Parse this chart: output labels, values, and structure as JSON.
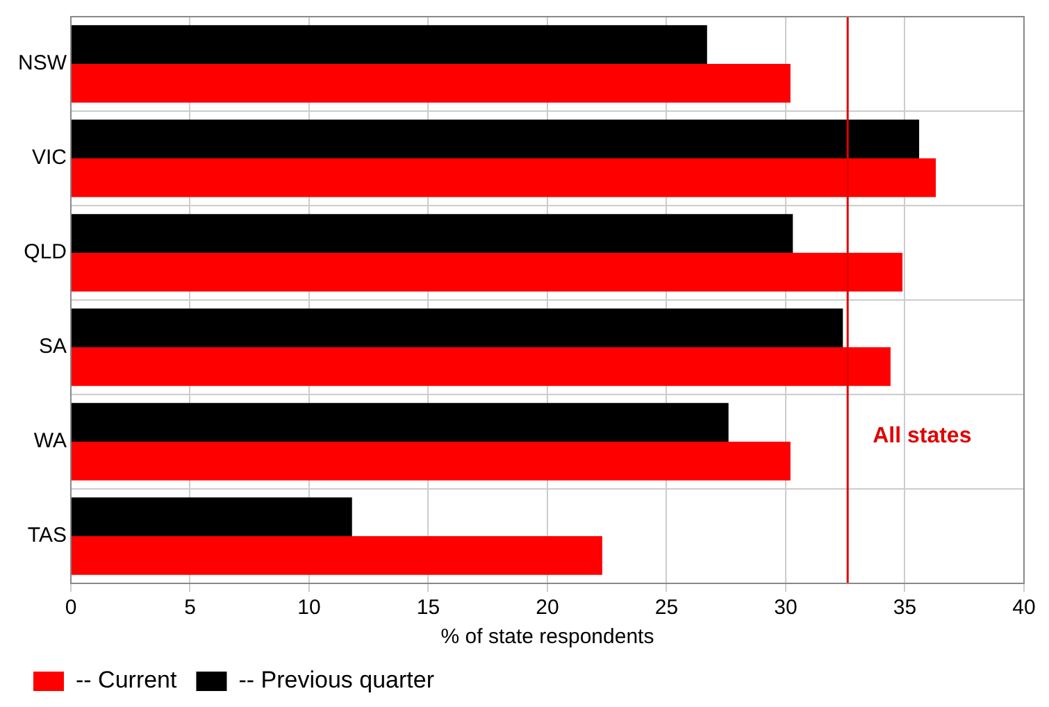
{
  "chart_data": {
    "type": "bar",
    "orientation": "horizontal",
    "xlabel": "% of state respondents",
    "categories": [
      "NSW",
      "VIC",
      "QLD",
      "SA",
      "WA",
      "TAS"
    ],
    "series": [
      {
        "name": "-- Current",
        "color": "#ff0000",
        "values": [
          30.2,
          36.3,
          34.9,
          34.4,
          30.2,
          22.3
        ]
      },
      {
        "name": "-- Previous quarter",
        "color": "#000000",
        "values": [
          26.7,
          35.6,
          30.3,
          32.4,
          27.6,
          11.8
        ]
      }
    ],
    "xlim": [
      0,
      40
    ],
    "xticks": [
      0,
      5,
      10,
      15,
      20,
      25,
      30,
      35,
      40
    ],
    "ref_lines": [
      {
        "axis": "x",
        "value": 32.6,
        "label": "All states",
        "color": "#e00000"
      }
    ],
    "grid": true,
    "legend": "bottom left"
  }
}
